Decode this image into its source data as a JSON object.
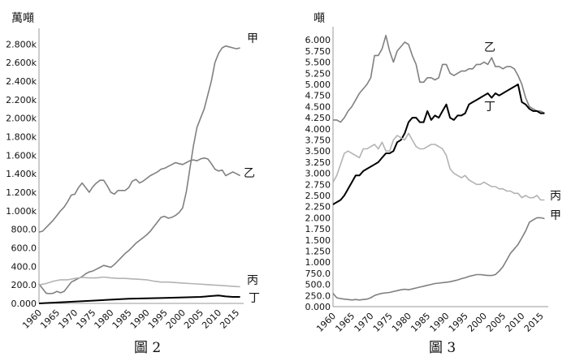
{
  "chart_data": [
    {
      "type": "line",
      "unit_label": "萬噸",
      "caption": "圖 2",
      "ylim": [
        0,
        2900
      ],
      "xlim": [
        1960,
        2017
      ],
      "y_ticks": [
        0,
        200,
        400,
        600,
        800,
        1000,
        1200,
        1400,
        1600,
        1800,
        2000,
        2200,
        2400,
        2600,
        2800
      ],
      "y_tick_labels": [
        "0.000",
        "200.0",
        "400.0",
        "600.0",
        "800.0",
        "1.000k",
        "1.200k",
        "1.400k",
        "1.600k",
        "1.800k",
        "2.000k",
        "2.200k",
        "2.400k",
        "2.600k",
        "2.800k"
      ],
      "x_ticks": [
        1960,
        1965,
        1970,
        1975,
        1980,
        1985,
        1990,
        1995,
        2000,
        2005,
        2010,
        2015
      ],
      "x_tick_labels": [
        "1960",
        "1965",
        "1970",
        "1975",
        "1980",
        "1985",
        "1990",
        "1995",
        "2000",
        "2005",
        "2010",
        "2015"
      ],
      "grid": false,
      "series": [
        {
          "name": "甲",
          "color": "#808080",
          "x": [
            1960,
            1961,
            1962,
            1963,
            1964,
            1965,
            1966,
            1967,
            1968,
            1969,
            1970,
            1971,
            1972,
            1973,
            1974,
            1975,
            1976,
            1977,
            1978,
            1979,
            1980,
            1981,
            1982,
            1983,
            1984,
            1985,
            1986,
            1987,
            1988,
            1989,
            1990,
            1991,
            1992,
            1993,
            1994,
            1995,
            1996,
            1997,
            1998,
            1999,
            2000,
            2001,
            2002,
            2003,
            2004,
            2005,
            2006,
            2007,
            2008,
            2009,
            2010,
            2011,
            2012,
            2013,
            2014,
            2015,
            2016
          ],
          "y": [
            210,
            160,
            110,
            105,
            110,
            130,
            115,
            130,
            180,
            230,
            250,
            270,
            290,
            320,
            340,
            350,
            370,
            390,
            410,
            400,
            390,
            420,
            460,
            500,
            540,
            570,
            610,
            650,
            680,
            710,
            740,
            780,
            830,
            880,
            930,
            940,
            920,
            930,
            950,
            980,
            1030,
            1200,
            1450,
            1700,
            1900,
            2000,
            2100,
            2250,
            2400,
            2600,
            2700,
            2760,
            2780,
            2770,
            2760,
            2750,
            2760
          ]
        },
        {
          "name": "乙",
          "color": "#808080",
          "x": [
            1960,
            1961,
            1962,
            1963,
            1964,
            1965,
            1966,
            1967,
            1968,
            1969,
            1970,
            1971,
            1972,
            1973,
            1974,
            1975,
            1976,
            1977,
            1978,
            1979,
            1980,
            1981,
            1982,
            1983,
            1984,
            1985,
            1986,
            1987,
            1988,
            1989,
            1990,
            1991,
            1992,
            1993,
            1994,
            1995,
            1996,
            1997,
            1998,
            1999,
            2000,
            2001,
            2002,
            2003,
            2004,
            2005,
            2006,
            2007,
            2008,
            2009,
            2010,
            2011,
            2012,
            2013,
            2014,
            2015,
            2016
          ],
          "y": [
            770,
            780,
            820,
            860,
            900,
            950,
            1000,
            1040,
            1100,
            1170,
            1180,
            1250,
            1300,
            1250,
            1200,
            1260,
            1300,
            1330,
            1330,
            1270,
            1200,
            1180,
            1220,
            1220,
            1220,
            1250,
            1320,
            1340,
            1300,
            1320,
            1350,
            1380,
            1400,
            1420,
            1450,
            1460,
            1480,
            1500,
            1520,
            1510,
            1500,
            1520,
            1540,
            1550,
            1540,
            1560,
            1570,
            1560,
            1510,
            1450,
            1430,
            1440,
            1380,
            1400,
            1420,
            1400,
            1380
          ]
        },
        {
          "name": "丙",
          "color": "#b3b3b3",
          "x": [
            1960,
            1962,
            1964,
            1966,
            1968,
            1970,
            1972,
            1974,
            1976,
            1978,
            1980,
            1982,
            1984,
            1986,
            1988,
            1990,
            1992,
            1994,
            1996,
            1998,
            2000,
            2002,
            2004,
            2006,
            2008,
            2010,
            2012,
            2014,
            2016
          ],
          "y": [
            200,
            215,
            240,
            255,
            255,
            270,
            280,
            275,
            275,
            285,
            275,
            270,
            270,
            265,
            260,
            255,
            240,
            230,
            230,
            225,
            220,
            215,
            210,
            205,
            200,
            195,
            190,
            185,
            180
          ]
        },
        {
          "name": "丁",
          "color": "#000000",
          "x": [
            1960,
            1965,
            1970,
            1975,
            1980,
            1985,
            1990,
            1995,
            2000,
            2005,
            2008,
            2010,
            2012,
            2014,
            2016
          ],
          "y": [
            0,
            10,
            20,
            30,
            40,
            50,
            55,
            60,
            65,
            70,
            80,
            85,
            75,
            70,
            70
          ]
        }
      ]
    },
    {
      "type": "line",
      "unit_label": "噸",
      "caption": "圖 3",
      "ylim": [
        0,
        6150
      ],
      "xlim": [
        1960,
        2017
      ],
      "y_ticks": [
        0,
        250,
        500,
        750,
        1000,
        1250,
        1500,
        1750,
        2000,
        2250,
        2500,
        2750,
        3000,
        3250,
        3500,
        3750,
        4000,
        4250,
        4500,
        4750,
        5000,
        5250,
        5500,
        5750,
        6000
      ],
      "y_tick_labels": [
        "0.000",
        "250.0",
        "500.0",
        "750.0",
        "1.000",
        "1.250",
        "1.500",
        "1.750",
        "2.000",
        "2.250",
        "2.500",
        "2.750",
        "3.000",
        "3.250",
        "3.500",
        "3.750",
        "4.000",
        "4.250",
        "4.500",
        "4.750",
        "5.000",
        "5.250",
        "5.500",
        "5.750",
        "6.000"
      ],
      "x_ticks": [
        1960,
        1965,
        1970,
        1975,
        1980,
        1985,
        1990,
        1995,
        2000,
        2005,
        2010,
        2015
      ],
      "x_tick_labels": [
        "1960",
        "1965",
        "1970",
        "1975",
        "1980",
        "1985",
        "1990",
        "1995",
        "2000",
        "2005",
        "2010",
        "2015"
      ],
      "grid": false,
      "series": [
        {
          "name": "乙",
          "color": "#808080",
          "x": [
            1960,
            1961,
            1962,
            1963,
            1964,
            1965,
            1966,
            1967,
            1968,
            1969,
            1970,
            1971,
            1972,
            1973,
            1974,
            1975,
            1976,
            1977,
            1978,
            1979,
            1980,
            1981,
            1982,
            1983,
            1984,
            1985,
            1986,
            1987,
            1988,
            1989,
            1990,
            1991,
            1992,
            1993,
            1994,
            1995,
            1996,
            1997,
            1998,
            1999,
            2000,
            2001,
            2002,
            2003,
            2004,
            2005,
            2006,
            2007,
            2008,
            2009,
            2010,
            2011,
            2012,
            2013,
            2014,
            2015,
            2016
          ],
          "y": [
            4200,
            4200,
            4150,
            4250,
            4400,
            4500,
            4650,
            4800,
            4900,
            5000,
            5150,
            5650,
            5650,
            5800,
            6100,
            5750,
            5500,
            5750,
            5850,
            5950,
            5900,
            5650,
            5450,
            5050,
            5050,
            5150,
            5150,
            5100,
            5150,
            5450,
            5450,
            5250,
            5200,
            5250,
            5300,
            5300,
            5350,
            5350,
            5450,
            5450,
            5500,
            5450,
            5600,
            5400,
            5400,
            5350,
            5400,
            5400,
            5350,
            5200,
            5000,
            4700,
            4500,
            4450,
            4400,
            4400,
            4350
          ]
        },
        {
          "name": "丁",
          "color": "#000000",
          "x": [
            1960,
            1961,
            1962,
            1963,
            1964,
            1965,
            1966,
            1967,
            1968,
            1969,
            1970,
            1971,
            1972,
            1973,
            1974,
            1975,
            1976,
            1977,
            1978,
            1979,
            1980,
            1981,
            1982,
            1983,
            1984,
            1985,
            1986,
            1987,
            1988,
            1989,
            1990,
            1991,
            1992,
            1993,
            1994,
            1995,
            1996,
            1997,
            1998,
            1999,
            2000,
            2001,
            2002,
            2003,
            2004,
            2005,
            2006,
            2007,
            2008,
            2009,
            2010,
            2011,
            2012,
            2013,
            2014,
            2015,
            2016
          ],
          "y": [
            2300,
            2350,
            2400,
            2500,
            2650,
            2800,
            2950,
            2950,
            3050,
            3100,
            3150,
            3200,
            3250,
            3350,
            3450,
            3450,
            3500,
            3700,
            3750,
            3900,
            4150,
            4250,
            4250,
            4150,
            4150,
            4400,
            4200,
            4300,
            4250,
            4400,
            4550,
            4250,
            4200,
            4300,
            4300,
            4350,
            4550,
            4600,
            4650,
            4700,
            4750,
            4800,
            4700,
            4800,
            4750,
            4800,
            4850,
            4900,
            4950,
            5000,
            4600,
            4550,
            4450,
            4400,
            4400,
            4350,
            4350
          ]
        },
        {
          "name": "丙",
          "color": "#b3b3b3",
          "x": [
            1960,
            1961,
            1962,
            1963,
            1964,
            1965,
            1966,
            1967,
            1968,
            1969,
            1970,
            1971,
            1972,
            1973,
            1974,
            1975,
            1976,
            1977,
            1978,
            1979,
            1980,
            1981,
            1982,
            1983,
            1984,
            1985,
            1986,
            1987,
            1988,
            1989,
            1990,
            1991,
            1992,
            1993,
            1994,
            1995,
            1996,
            1997,
            1998,
            1999,
            2000,
            2001,
            2002,
            2003,
            2004,
            2005,
            2006,
            2007,
            2008,
            2009,
            2010,
            2011,
            2012,
            2013,
            2014,
            2015,
            2016
          ],
          "y": [
            2800,
            2950,
            3200,
            3450,
            3500,
            3450,
            3400,
            3350,
            3550,
            3550,
            3600,
            3650,
            3550,
            3700,
            3500,
            3500,
            3750,
            3850,
            3800,
            3750,
            3900,
            3750,
            3600,
            3550,
            3550,
            3600,
            3650,
            3650,
            3600,
            3550,
            3400,
            3100,
            3000,
            2950,
            2900,
            2950,
            2850,
            2800,
            2750,
            2750,
            2800,
            2750,
            2700,
            2700,
            2650,
            2650,
            2600,
            2600,
            2550,
            2550,
            2450,
            2500,
            2450,
            2450,
            2500,
            2400,
            2400
          ]
        },
        {
          "name": "甲",
          "color": "#808080",
          "x": [
            1960,
            1961,
            1962,
            1963,
            1964,
            1965,
            1966,
            1967,
            1968,
            1969,
            1970,
            1971,
            1972,
            1973,
            1974,
            1975,
            1976,
            1977,
            1978,
            1979,
            1980,
            1981,
            1982,
            1983,
            1984,
            1985,
            1986,
            1987,
            1988,
            1989,
            1990,
            1991,
            1992,
            1993,
            1994,
            1995,
            1996,
            1997,
            1998,
            1999,
            2000,
            2001,
            2002,
            2003,
            2004,
            2005,
            2006,
            2007,
            2008,
            2009,
            2010,
            2011,
            2012,
            2013,
            2014,
            2015,
            2016
          ],
          "y": [
            300,
            200,
            180,
            170,
            160,
            150,
            160,
            150,
            160,
            170,
            200,
            250,
            280,
            300,
            310,
            320,
            340,
            360,
            380,
            390,
            380,
            400,
            420,
            440,
            460,
            480,
            500,
            520,
            530,
            540,
            550,
            560,
            580,
            600,
            630,
            650,
            680,
            700,
            720,
            720,
            710,
            700,
            700,
            720,
            800,
            900,
            1050,
            1200,
            1300,
            1400,
            1550,
            1700,
            1900,
            1950,
            2000,
            2000,
            1980
          ]
        }
      ]
    }
  ]
}
